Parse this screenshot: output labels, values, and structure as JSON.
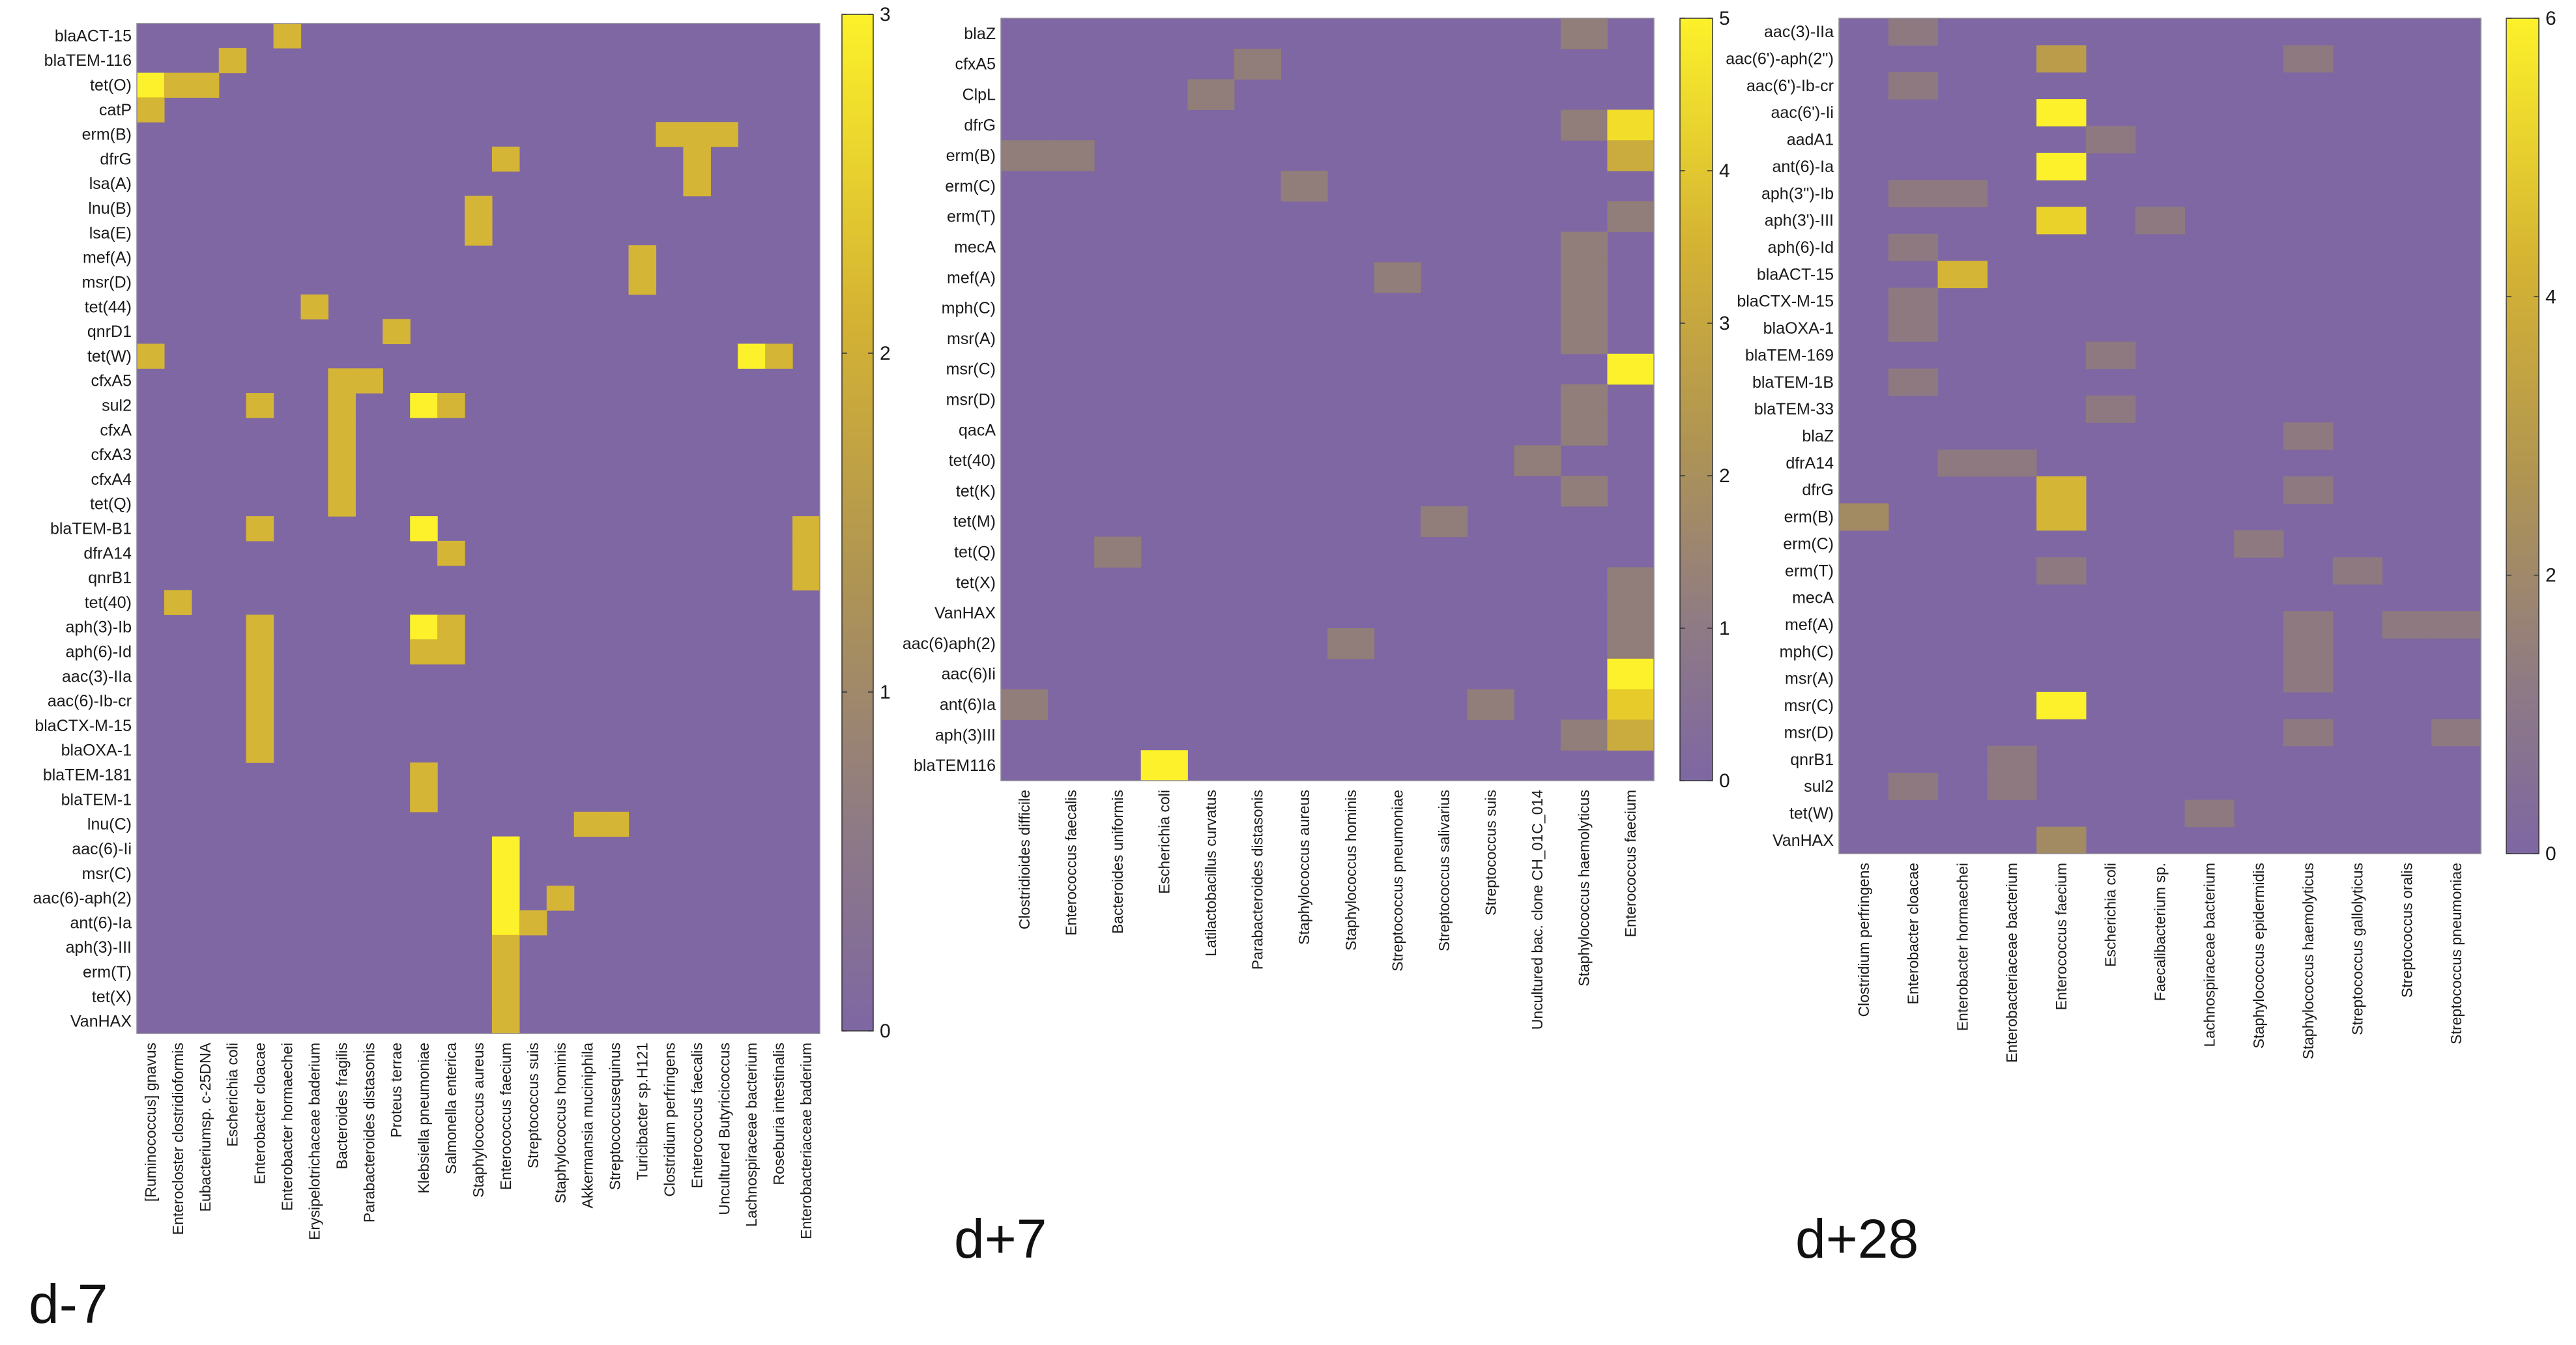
{
  "colors": {
    "background": "#ffffff",
    "colormap": [
      "#7e67a3",
      "#96826f",
      "#ba9c4a",
      "#e2c22a",
      "#fcf12a"
    ],
    "label": "#1a1a1a"
  },
  "chart_data": [
    {
      "type": "heatmap",
      "title": "d-7",
      "rows": [
        "blaACT-15",
        "blaTEM-116",
        "tet(O)",
        "catP",
        "erm(B)",
        "dfrG",
        "lsa(A)",
        "lnu(B)",
        "lsa(E)",
        "mef(A)",
        "msr(D)",
        "tet(44)",
        "qnrD1",
        "tet(W)",
        "cfxA5",
        "sul2",
        "cfxA",
        "cfxA3",
        "cfxA4",
        "tet(Q)",
        "blaTEM-B1",
        "dfrA14",
        "qnrB1",
        "tet(40)",
        "aph(3)-Ib",
        "aph(6)-Id",
        "aac(3)-IIa",
        "aac(6)-Ib-cr",
        "blaCTX-M-15",
        "blaOXA-1",
        "blaTEM-181",
        "blaTEM-1",
        "lnu(C)",
        "aac(6)-Ii",
        "msr(C)",
        "aac(6)-aph(2)",
        "ant(6)-Ia",
        "aph(3)-III",
        "erm(T)",
        "tet(X)",
        "VanHAX"
      ],
      "columns": [
        "[Ruminococcus] gnavus",
        "Enterocloster clostridioformis",
        "Eubacteriumsp. c-25DNA",
        "Escherichia coli",
        "Enterobacter cloacae",
        "Enterobacter hormaechei",
        "Erysipelotrichaceae baderium",
        "Bacteroides fragilis",
        "Parabacteroides distasonis",
        "Proteus terrae",
        "Klebsiella pneumoniae",
        "Salmonella enterica",
        "Staphylococcus aureus",
        "Enterococcus faecium",
        "Streptococcus suis",
        "Staphylococcus hominis",
        "Akkermansia muciniphila",
        "Streptococcusequinus",
        "Turicibacter sp.H121",
        "Clostridium perfringens",
        "Enterococcus faecalis",
        "Uncultured Butyricicoccus",
        "Lachnospiraceae bacterium",
        "Roseburia intestinalis",
        "Enterobacteriaceae baderium"
      ],
      "cells": [
        [
          "blaACT-15",
          "Enterobacter hormaechei",
          2
        ],
        [
          "blaTEM-116",
          "Escherichia coli",
          2
        ],
        [
          "tet(O)",
          "[Ruminococcus] gnavus",
          3
        ],
        [
          "tet(O)",
          "Enterocloster clostridioformis",
          2
        ],
        [
          "tet(O)",
          "Eubacteriumsp. c-25DNA",
          2
        ],
        [
          "catP",
          "[Ruminococcus] gnavus",
          2
        ],
        [
          "erm(B)",
          "Clostridium perfringens",
          2
        ],
        [
          "erm(B)",
          "Enterococcus faecalis",
          2
        ],
        [
          "erm(B)",
          "Uncultured Butyricicoccus",
          2
        ],
        [
          "dfrG",
          "Enterococcus faecium",
          2
        ],
        [
          "dfrG",
          "Enterococcus faecalis",
          2
        ],
        [
          "lsa(A)",
          "Enterococcus faecalis",
          2
        ],
        [
          "lnu(B)",
          "Staphylococcus aureus",
          2
        ],
        [
          "lsa(E)",
          "Staphylococcus aureus",
          2
        ],
        [
          "mef(A)",
          "Turicibacter sp.H121",
          2
        ],
        [
          "msr(D)",
          "Turicibacter sp.H121",
          2
        ],
        [
          "tet(44)",
          "Erysipelotrichaceae baderium",
          2
        ],
        [
          "qnrD1",
          "Proteus terrae",
          2
        ],
        [
          "tet(W)",
          "[Ruminococcus] gnavus",
          2
        ],
        [
          "tet(W)",
          "Lachnospiraceae bacterium",
          3
        ],
        [
          "tet(W)",
          "Roseburia intestinalis",
          2
        ],
        [
          "cfxA5",
          "Bacteroides fragilis",
          2
        ],
        [
          "cfxA5",
          "Parabacteroides distasonis",
          2
        ],
        [
          "sul2",
          "Enterobacter cloacae",
          2
        ],
        [
          "sul2",
          "Bacteroides fragilis",
          2
        ],
        [
          "sul2",
          "Klebsiella pneumoniae",
          3
        ],
        [
          "sul2",
          "Salmonella enterica",
          2
        ],
        [
          "cfxA",
          "Bacteroides fragilis",
          2
        ],
        [
          "cfxA3",
          "Bacteroides fragilis",
          2
        ],
        [
          "cfxA4",
          "Bacteroides fragilis",
          2
        ],
        [
          "tet(Q)",
          "Bacteroides fragilis",
          2
        ],
        [
          "blaTEM-B1",
          "Enterobacter cloacae",
          2
        ],
        [
          "blaTEM-B1",
          "Klebsiella pneumoniae",
          3
        ],
        [
          "blaTEM-B1",
          "Enterobacteriaceae baderium",
          2
        ],
        [
          "dfrA14",
          "Salmonella enterica",
          2
        ],
        [
          "dfrA14",
          "Enterobacteriaceae baderium",
          2
        ],
        [
          "qnrB1",
          "Enterobacteriaceae baderium",
          2
        ],
        [
          "tet(40)",
          "Enterocloster clostridioformis",
          2
        ],
        [
          "aph(3)-Ib",
          "Enterobacter cloacae",
          2
        ],
        [
          "aph(3)-Ib",
          "Klebsiella pneumoniae",
          3
        ],
        [
          "aph(3)-Ib",
          "Salmonella enterica",
          2
        ],
        [
          "aph(6)-Id",
          "Enterobacter cloacae",
          2
        ],
        [
          "aph(6)-Id",
          "Klebsiella pneumoniae",
          2
        ],
        [
          "aph(6)-Id",
          "Salmonella enterica",
          2
        ],
        [
          "aac(3)-IIa",
          "Enterobacter cloacae",
          2
        ],
        [
          "aac(6)-Ib-cr",
          "Enterobacter cloacae",
          2
        ],
        [
          "blaCTX-M-15",
          "Enterobacter cloacae",
          2
        ],
        [
          "blaOXA-1",
          "Enterobacter cloacae",
          2
        ],
        [
          "blaTEM-181",
          "Klebsiella pneumoniae",
          2
        ],
        [
          "blaTEM-1",
          "Klebsiella pneumoniae",
          2
        ],
        [
          "lnu(C)",
          "Akkermansia muciniphila",
          2
        ],
        [
          "lnu(C)",
          "Streptococcusequinus",
          2
        ],
        [
          "aac(6)-Ii",
          "Enterococcus faecium",
          3
        ],
        [
          "msr(C)",
          "Enterococcus faecium",
          3
        ],
        [
          "aac(6)-aph(2)",
          "Enterococcus faecium",
          3
        ],
        [
          "aac(6)-aph(2)",
          "Staphylococcus hominis",
          2
        ],
        [
          "ant(6)-Ia",
          "Enterococcus faecium",
          3
        ],
        [
          "ant(6)-Ia",
          "Streptococcus suis",
          2
        ],
        [
          "aph(3)-III",
          "Enterococcus faecium",
          2
        ],
        [
          "erm(T)",
          "Enterococcus faecium",
          2
        ],
        [
          "tet(X)",
          "Enterococcus faecium",
          2
        ],
        [
          "VanHAX",
          "Enterococcus faecium",
          2
        ]
      ],
      "colorbar": {
        "range": [
          0,
          3
        ],
        "ticks": [
          "0",
          "1",
          "2",
          "3"
        ]
      }
    },
    {
      "type": "heatmap",
      "title": "d+7",
      "rows": [
        "blaZ",
        "cfxA5",
        "ClpL",
        "dfrG",
        "erm(B)",
        "erm(C)",
        "erm(T)",
        "mecA",
        "mef(A)",
        "mph(C)",
        "msr(A)",
        "msr(C)",
        "msr(D)",
        "qacA",
        "tet(40)",
        "tet(K)",
        "tet(M)",
        "tet(Q)",
        "tet(X)",
        "VanHAX",
        "aac(6)aph(2)",
        "aac(6)Ii",
        "ant(6)Ia",
        "aph(3)III",
        "blaTEM116"
      ],
      "columns": [
        "Clostridioides difficile",
        "Enterococcus faecalis",
        "Bacteroides uniformis",
        "Escherichia coli",
        "Latilactobacillus curvatus",
        "Parabacteroides distasonis",
        "Staphylococcus aureus",
        "Staphylococcus hominis",
        "Streptococcus pneumoniae",
        "Streptococcus salivarius",
        "Streptococcus suis",
        "Uncultured bac. clone CH_01C_014",
        "Staphylococcus haemolyticus",
        "Enterococcus faecium"
      ],
      "cells": [
        [
          "blaZ",
          "Staphylococcus haemolyticus",
          1
        ],
        [
          "cfxA5",
          "Parabacteroides distasonis",
          1
        ],
        [
          "ClpL",
          "Latilactobacillus curvatus",
          1
        ],
        [
          "dfrG",
          "Staphylococcus haemolyticus",
          1
        ],
        [
          "dfrG",
          "Enterococcus faecium",
          4.5
        ],
        [
          "erm(B)",
          "Clostridioides difficile",
          1
        ],
        [
          "erm(B)",
          "Enterococcus faecalis",
          1
        ],
        [
          "erm(B)",
          "Enterococcus faecium",
          3
        ],
        [
          "erm(C)",
          "Staphylococcus aureus",
          1
        ],
        [
          "erm(T)",
          "Enterococcus faecium",
          1
        ],
        [
          "mecA",
          "Staphylococcus haemolyticus",
          1
        ],
        [
          "mef(A)",
          "Streptococcus pneumoniae",
          1
        ],
        [
          "mef(A)",
          "Staphylococcus haemolyticus",
          1
        ],
        [
          "mph(C)",
          "Staphylococcus haemolyticus",
          1
        ],
        [
          "msr(A)",
          "Staphylococcus haemolyticus",
          1
        ],
        [
          "msr(C)",
          "Enterococcus faecium",
          5
        ],
        [
          "msr(D)",
          "Staphylococcus haemolyticus",
          1
        ],
        [
          "qacA",
          "Staphylococcus haemolyticus",
          1
        ],
        [
          "tet(40)",
          "Uncultured bac. clone CH_01C_014",
          1
        ],
        [
          "tet(K)",
          "Staphylococcus haemolyticus",
          1
        ],
        [
          "tet(M)",
          "Streptococcus salivarius",
          1
        ],
        [
          "tet(Q)",
          "Bacteroides uniformis",
          1
        ],
        [
          "tet(X)",
          "Enterococcus faecium",
          1
        ],
        [
          "VanHAX",
          "Enterococcus faecium",
          1
        ],
        [
          "aac(6)aph(2)",
          "Staphylococcus hominis",
          1
        ],
        [
          "aac(6)aph(2)",
          "Enterococcus faecium",
          1
        ],
        [
          "aac(6)Ii",
          "Enterococcus faecium",
          5
        ],
        [
          "ant(6)Ia",
          "Clostridioides difficile",
          1
        ],
        [
          "ant(6)Ia",
          "Streptococcus suis",
          1
        ],
        [
          "ant(6)Ia",
          "Enterococcus faecium",
          4
        ],
        [
          "aph(3)III",
          "Staphylococcus haemolyticus",
          1
        ],
        [
          "aph(3)III",
          "Enterococcus faecium",
          3
        ],
        [
          "blaTEM116",
          "Escherichia coli",
          5
        ]
      ],
      "colorbar": {
        "range": [
          0,
          5
        ],
        "ticks": [
          "0",
          "1",
          "2",
          "3",
          "4",
          "5"
        ]
      }
    },
    {
      "type": "heatmap",
      "title": "d+28",
      "rows": [
        "aac(3)-IIa",
        "aac(6')-aph(2'')",
        "aac(6')-Ib-cr",
        "aac(6')-Ii",
        "aadA1",
        "ant(6)-Ia",
        "aph(3'')-Ib",
        "aph(3')-III",
        "aph(6)-Id",
        "blaACT-15",
        "blaCTX-M-15",
        "blaOXA-1",
        "blaTEM-169",
        "blaTEM-1B",
        "blaTEM-33",
        "blaZ",
        "dfrA14",
        "dfrG",
        "erm(B)",
        "erm(C)",
        "erm(T)",
        "mecA",
        "mef(A)",
        "mph(C)",
        "msr(A)",
        "msr(C)",
        "msr(D)",
        "qnrB1",
        "sul2",
        "tet(W)",
        "VanHAX"
      ],
      "columns": [
        "Clostridium perfringens",
        "Enterobacter cloacae",
        "Enterobacter hormaechei",
        "Enterobacteriaceae bacterium",
        "Enterococcus faecium",
        "Escherichia coli",
        "Faecalibacterium sp.",
        "Lachnospiraceae bacterium",
        "Staphylococcus epidermidis",
        "Staphylococcus haemolyticus",
        "Streptococcus gallolyticus",
        "Streptococcus oralis",
        "Streptococcus pneumoniae"
      ],
      "cells": [
        [
          "aac(3)-IIa",
          "Enterobacter cloacae",
          1
        ],
        [
          "aac(6')-aph(2'')",
          "Enterococcus faecium",
          3
        ],
        [
          "aac(6')-aph(2'')",
          "Staphylococcus haemolyticus",
          1
        ],
        [
          "aac(6')-Ib-cr",
          "Enterobacter cloacae",
          1
        ],
        [
          "aac(6')-Ii",
          "Enterococcus faecium",
          6
        ],
        [
          "aadA1",
          "Escherichia coli",
          1
        ],
        [
          "ant(6)-Ia",
          "Enterococcus faecium",
          6
        ],
        [
          "aph(3'')-Ib",
          "Enterobacter cloacae",
          1
        ],
        [
          "aph(3'')-Ib",
          "Enterobacter hormaechei",
          1
        ],
        [
          "aph(3')-III",
          "Enterococcus faecium",
          5
        ],
        [
          "aph(3')-III",
          "Faecalibacterium sp.",
          1
        ],
        [
          "aph(6)-Id",
          "Enterobacter cloacae",
          1
        ],
        [
          "blaACT-15",
          "Enterobacter hormaechei",
          4
        ],
        [
          "blaCTX-M-15",
          "Enterobacter cloacae",
          1
        ],
        [
          "blaOXA-1",
          "Enterobacter cloacae",
          1
        ],
        [
          "blaTEM-169",
          "Escherichia coli",
          1
        ],
        [
          "blaTEM-1B",
          "Enterobacter cloacae",
          1
        ],
        [
          "blaTEM-33",
          "Escherichia coli",
          1
        ],
        [
          "blaZ",
          "Staphylococcus haemolyticus",
          1
        ],
        [
          "dfrA14",
          "Enterobacter hormaechei",
          1
        ],
        [
          "dfrA14",
          "Enterobacteriaceae bacterium",
          1
        ],
        [
          "dfrG",
          "Enterococcus faecium",
          4
        ],
        [
          "dfrG",
          "Staphylococcus haemolyticus",
          1
        ],
        [
          "erm(B)",
          "Clostridium perfringens",
          2
        ],
        [
          "erm(B)",
          "Enterococcus faecium",
          4
        ],
        [
          "erm(C)",
          "Staphylococcus epidermidis",
          1
        ],
        [
          "erm(T)",
          "Enterococcus faecium",
          1
        ],
        [
          "erm(T)",
          "Streptococcus gallolyticus",
          1
        ],
        [
          "mef(A)",
          "Staphylococcus haemolyticus",
          1
        ],
        [
          "mef(A)",
          "Streptococcus oralis",
          1
        ],
        [
          "mef(A)",
          "Streptococcus pneumoniae",
          1
        ],
        [
          "mph(C)",
          "Staphylococcus haemolyticus",
          1
        ],
        [
          "msr(A)",
          "Staphylococcus haemolyticus",
          1
        ],
        [
          "msr(C)",
          "Enterococcus faecium",
          6
        ],
        [
          "msr(D)",
          "Staphylococcus haemolyticus",
          1
        ],
        [
          "msr(D)",
          "Streptococcus pneumoniae",
          1
        ],
        [
          "qnrB1",
          "Enterobacteriaceae bacterium",
          1
        ],
        [
          "sul2",
          "Enterobacter cloacae",
          1
        ],
        [
          "sul2",
          "Enterobacteriaceae bacterium",
          1
        ],
        [
          "tet(W)",
          "Lachnospiraceae bacterium",
          1
        ],
        [
          "VanHAX",
          "Enterococcus faecium",
          2
        ]
      ],
      "colorbar": {
        "range": [
          0,
          6
        ],
        "ticks": [
          "0",
          "2",
          "4",
          "6"
        ]
      }
    }
  ]
}
